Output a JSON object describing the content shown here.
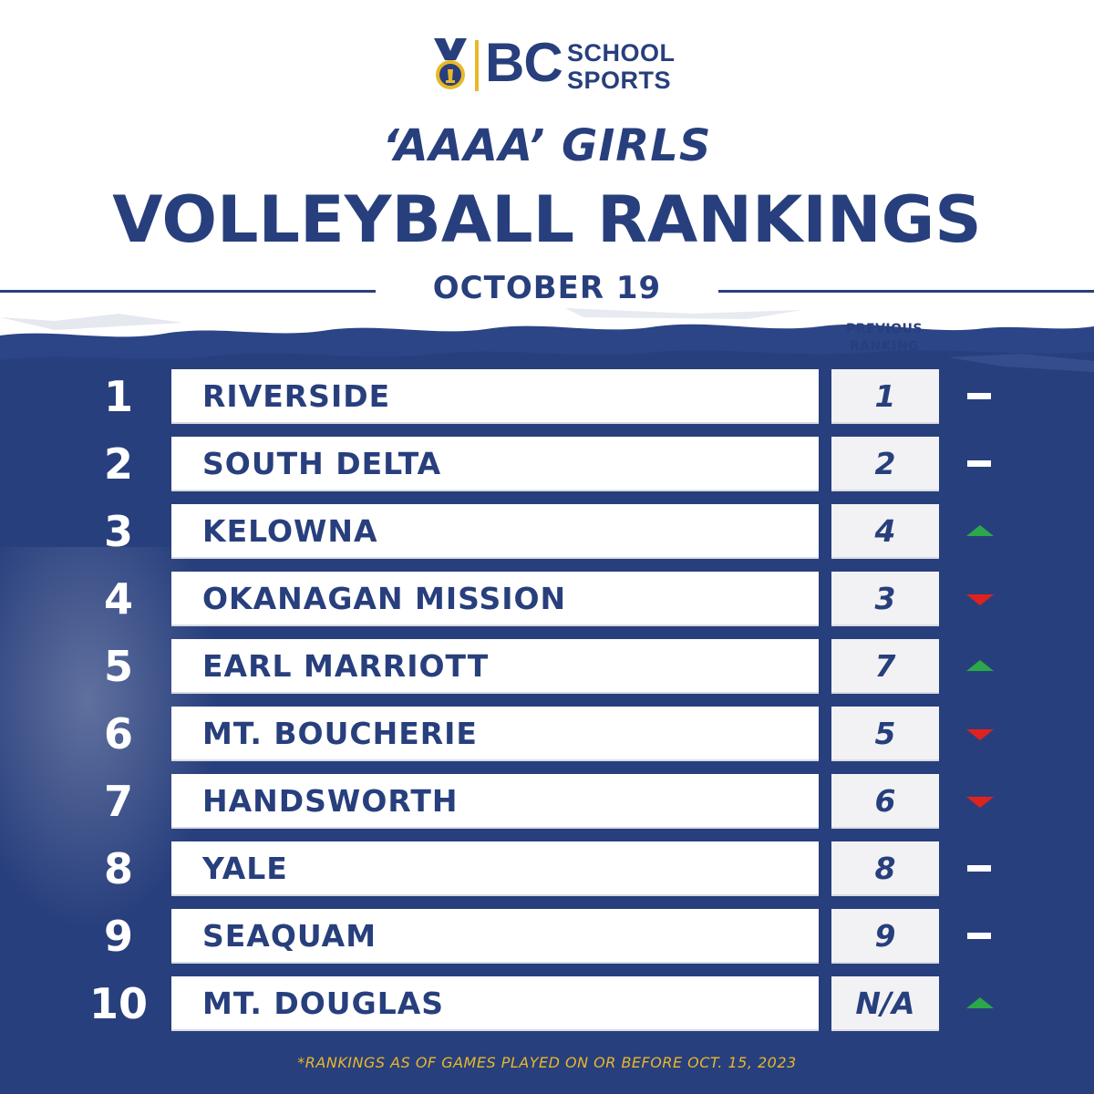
{
  "brand": {
    "logo_primary": "BC",
    "logo_line1": "SCHOOL",
    "logo_line2": "SPORTS",
    "navy": "#283f7d",
    "gold": "#e9b82a"
  },
  "header": {
    "subtitle": "‘AAAA’ GIRLS",
    "title": "VOLLEYBALL RANKINGS",
    "date": "OCTOBER 19",
    "previous_ranking_line1": "PREVIOUS",
    "previous_ranking_line2": "RANKING"
  },
  "rankings": [
    {
      "rank": "1",
      "team": "RIVERSIDE",
      "previous": "1",
      "trend": "same"
    },
    {
      "rank": "2",
      "team": "SOUTH DELTA",
      "previous": "2",
      "trend": "same"
    },
    {
      "rank": "3",
      "team": "KELOWNA",
      "previous": "4",
      "trend": "up"
    },
    {
      "rank": "4",
      "team": "OKANAGAN MISSION",
      "previous": "3",
      "trend": "down"
    },
    {
      "rank": "5",
      "team": "EARL MARRIOTT",
      "previous": "7",
      "trend": "up"
    },
    {
      "rank": "6",
      "team": "MT. BOUCHERIE",
      "previous": "5",
      "trend": "down"
    },
    {
      "rank": "7",
      "team": "HANDSWORTH",
      "previous": "6",
      "trend": "down"
    },
    {
      "rank": "8",
      "team": "YALE",
      "previous": "8",
      "trend": "same"
    },
    {
      "rank": "9",
      "team": "SEAQUAM",
      "previous": "9",
      "trend": "same"
    },
    {
      "rank": "10",
      "team": "MT. DOUGLAS",
      "previous": "N/A",
      "trend": "up"
    }
  ],
  "trend_colors": {
    "up": "#2aa84a",
    "down": "#e0221e",
    "same": "#ffffff"
  },
  "footnote": "*RANKINGS AS OF GAMES PLAYED ON OR BEFORE OCT. 15, 2023"
}
